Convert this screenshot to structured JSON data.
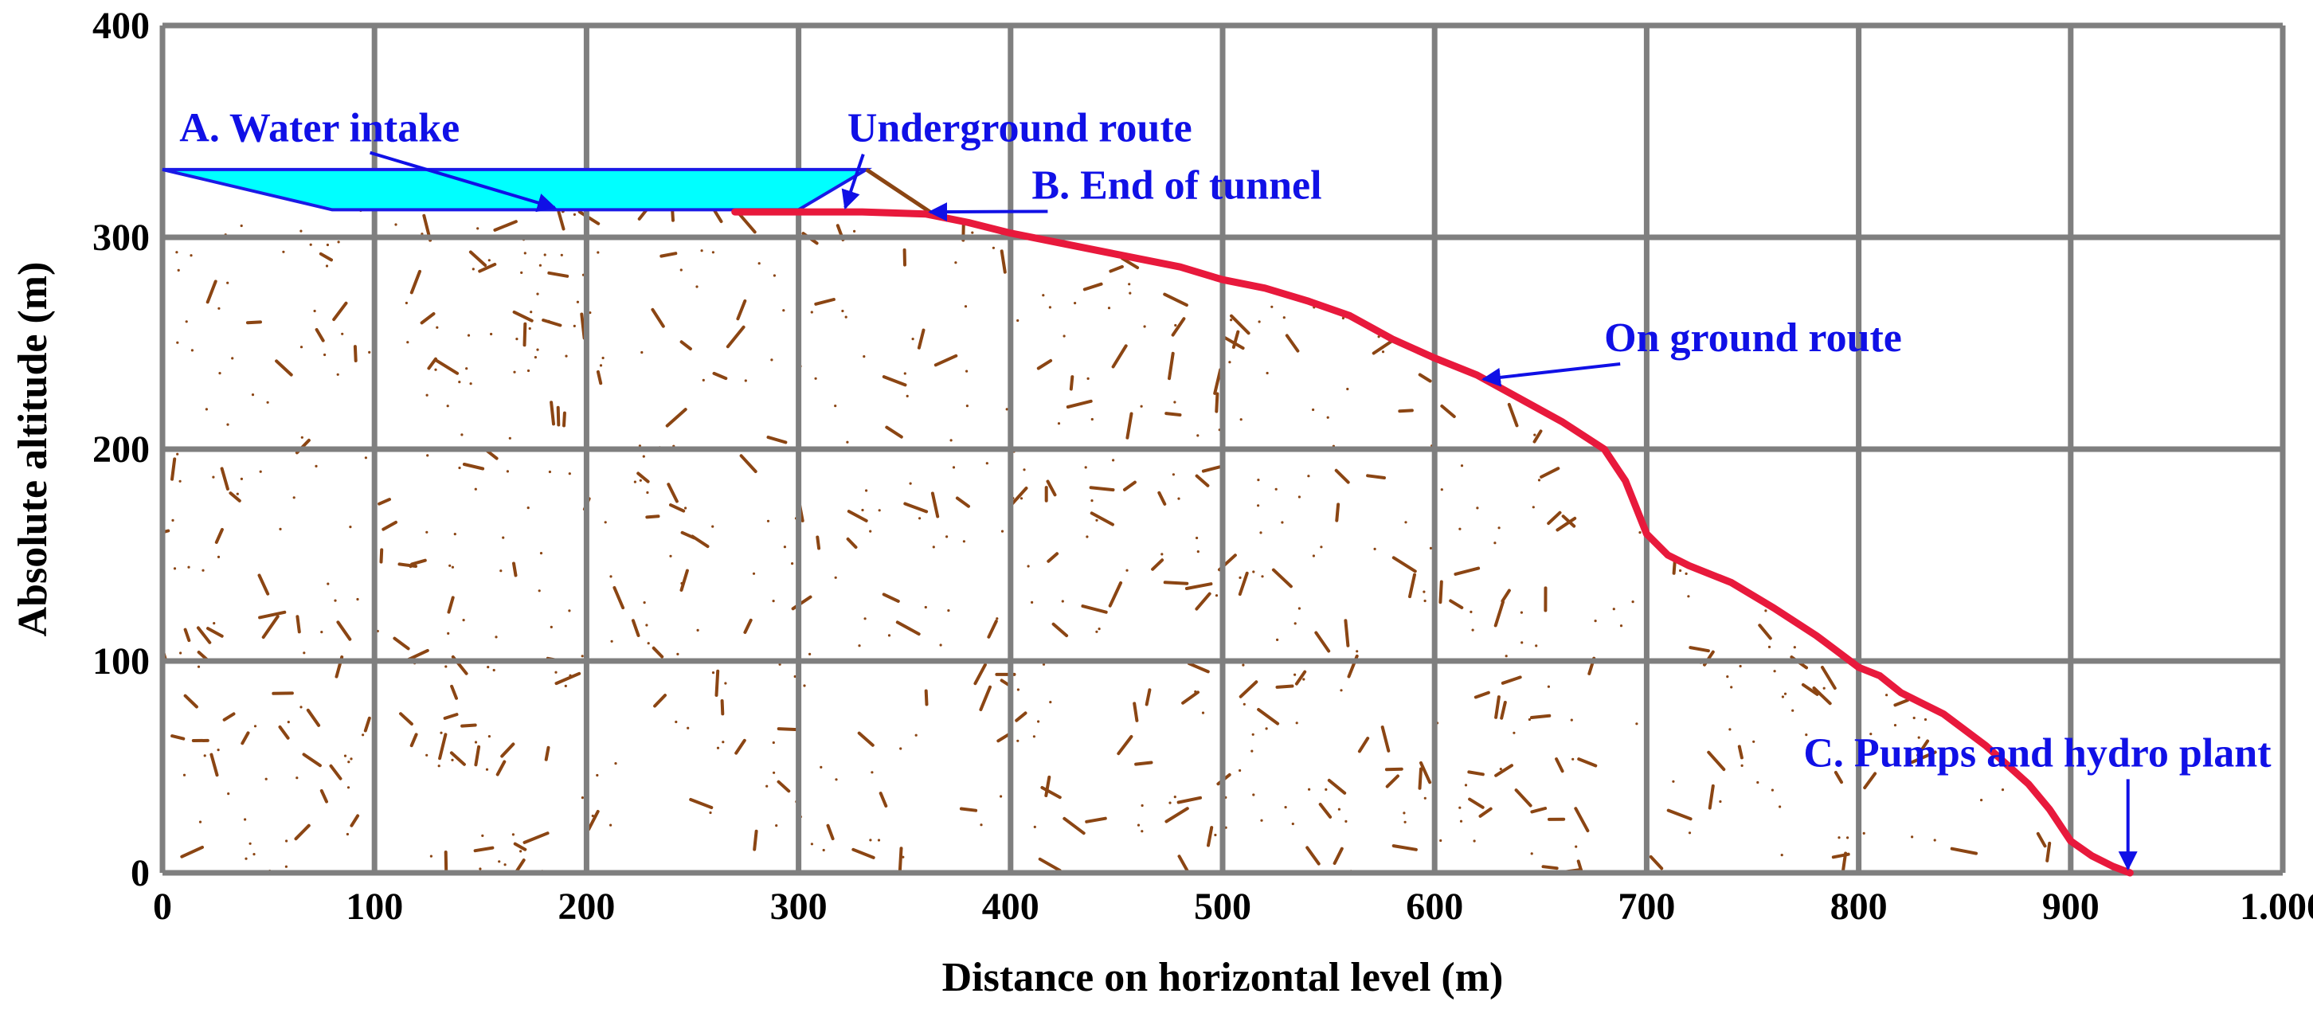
{
  "chart_data": {
    "type": "line",
    "xlabel": "Distance on horizontal level (m)",
    "ylabel": "Absolute altitude (m)",
    "xlim": [
      0,
      1000
    ],
    "ylim": [
      0,
      400
    ],
    "x_ticks": [
      "0",
      "100",
      "200",
      "300",
      "400",
      "500",
      "600",
      "700",
      "800",
      "900",
      "1.000"
    ],
    "y_ticks": [
      "0",
      "100",
      "200",
      "300",
      "400"
    ],
    "grid": true,
    "colors": {
      "grid": "#7f7f7f",
      "terrain_speckle": "#8b4513",
      "route": "#e8193c",
      "reservoir_fill": "#00ffff",
      "reservoir_edge": "#1a1ae6",
      "annotation": "#1010e6",
      "tunnel": "#8b4513"
    },
    "series": [
      {
        "kind": "on-ground-route",
        "x": [
          270,
          300,
          330,
          360,
          380,
          400,
          420,
          450,
          480,
          500,
          520,
          540,
          560,
          580,
          600,
          620,
          640,
          660,
          680,
          690,
          700,
          710,
          720,
          740,
          760,
          780,
          800,
          810,
          820,
          840,
          860,
          880,
          890,
          900,
          910,
          920,
          928
        ],
        "y": [
          312,
          312,
          312,
          311,
          307,
          302,
          298,
          292,
          286,
          280,
          276,
          270,
          263,
          252,
          243,
          235,
          224,
          213,
          200,
          185,
          160,
          150,
          145,
          137,
          125,
          112,
          97,
          93,
          85,
          75,
          60,
          42,
          30,
          15,
          8,
          3,
          0
        ]
      },
      {
        "kind": "reservoir",
        "x": [
          0,
          332,
          300,
          80
        ],
        "y": [
          332,
          332,
          313,
          313
        ]
      },
      {
        "kind": "tunnel",
        "x": [
          332,
          365
        ],
        "y": [
          332,
          310
        ]
      }
    ],
    "annotations": [
      {
        "text": "A. Water intake",
        "x_data": 8,
        "y_data": 352,
        "arrow_to": [
          185,
          314
        ]
      },
      {
        "text": "Underground route",
        "x_data": 323,
        "y_data": 352,
        "arrow_to": [
          322,
          314
        ]
      },
      {
        "text": "B. End of tunnel",
        "x_data": 410,
        "y_data": 325,
        "arrow_to": [
          362,
          312
        ]
      },
      {
        "text": "On ground route",
        "x_data": 680,
        "y_data": 253,
        "arrow_to": [
          623,
          233
        ]
      },
      {
        "text": "C. Pumps and hydro plant",
        "x_data": 774,
        "y_data": 57,
        "arrow_to": [
          927,
          2
        ]
      }
    ]
  }
}
